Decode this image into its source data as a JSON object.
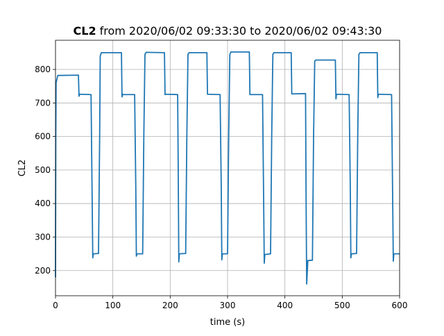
{
  "chart_data": {
    "type": "line",
    "title_bold": "CL2",
    "title": "from 2020/06/02 09:33:30 to 2020/06/02 09:43:30",
    "x_label": "time (s)",
    "y_label": "CL2",
    "xlim": [
      0,
      600
    ],
    "ylim": [
      125,
      887
    ],
    "xticks": [
      0,
      100,
      200,
      300,
      400,
      500,
      600
    ],
    "yticks": [
      200,
      300,
      400,
      500,
      600,
      700,
      800
    ],
    "grid": true,
    "series": [
      {
        "name": "CL2",
        "color": "#1f77b4",
        "x": [
          0,
          0.5,
          1,
          4,
          40,
          41,
          42,
          62,
          64,
          65,
          66,
          75,
          77,
          78,
          80,
          115,
          116,
          117,
          118,
          138,
          140,
          141,
          142,
          152,
          154,
          156,
          158,
          190,
          191,
          192,
          213,
          214,
          215,
          216,
          227,
          229,
          231,
          233,
          264,
          265,
          287,
          289,
          290,
          291,
          300,
          302,
          304,
          306,
          338,
          339,
          361,
          363,
          364,
          365,
          375,
          377,
          379,
          381,
          411,
          412,
          436,
          437,
          438,
          440,
          448,
          450,
          452,
          454,
          488,
          489,
          490,
          512,
          514,
          515,
          516,
          525,
          527,
          529,
          531,
          561,
          562,
          563,
          586,
          588,
          589,
          590,
          600
        ],
        "values": [
          180,
          600,
          760,
          782,
          783,
          720,
          726,
          725,
          400,
          238,
          250,
          251,
          600,
          840,
          850,
          850,
          718,
          726,
          725,
          725,
          450,
          243,
          250,
          250,
          600,
          845,
          851,
          850,
          725,
          726,
          725,
          500,
          226,
          250,
          251,
          600,
          845,
          850,
          850,
          726,
          725,
          450,
          232,
          250,
          250,
          600,
          845,
          852,
          852,
          725,
          725,
          400,
          222,
          248,
          250,
          600,
          845,
          850,
          850,
          727,
          728,
          400,
          160,
          230,
          231,
          600,
          825,
          828,
          828,
          712,
          726,
          725,
          450,
          238,
          250,
          251,
          600,
          845,
          850,
          850,
          716,
          726,
          725,
          400,
          228,
          250,
          250
        ]
      }
    ]
  }
}
